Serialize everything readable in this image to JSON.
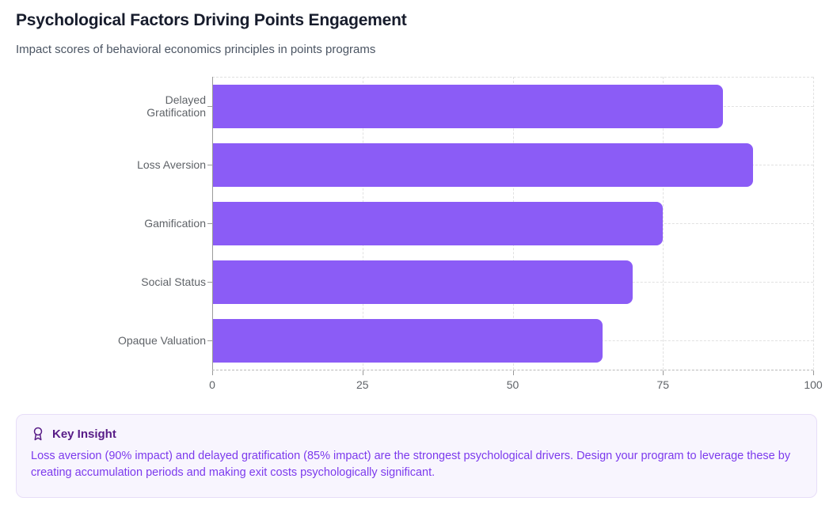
{
  "header": {
    "title": "Psychological Factors Driving Points Engagement",
    "subtitle": "Impact scores of behavioral economics principles in points programs"
  },
  "chart_data": {
    "type": "bar",
    "orientation": "horizontal",
    "title": "Psychological Factors Driving Points Engagement",
    "categories": [
      "Delayed Gratification",
      "Loss Aversion",
      "Gamification",
      "Social Status",
      "Opaque Valuation"
    ],
    "values": [
      85,
      90,
      75,
      70,
      65
    ],
    "xlabel": "",
    "ylabel": "",
    "xlim": [
      0,
      100
    ],
    "x_ticks": [
      0,
      25,
      50,
      75,
      100
    ],
    "grid": "dashed",
    "legend": "none",
    "bar_color": "#8b5cf6"
  },
  "insight": {
    "icon": "award-icon",
    "heading": "Key Insight",
    "body": "Loss aversion (90% impact) and delayed gratification (85% impact) are the strongest psychological drivers. Design your program to leverage these by creating accumulation periods and making exit costs psychologically significant.",
    "accent_color": "#581c87",
    "text_color": "#7c3aed",
    "background_color": "#f8f5fe"
  }
}
